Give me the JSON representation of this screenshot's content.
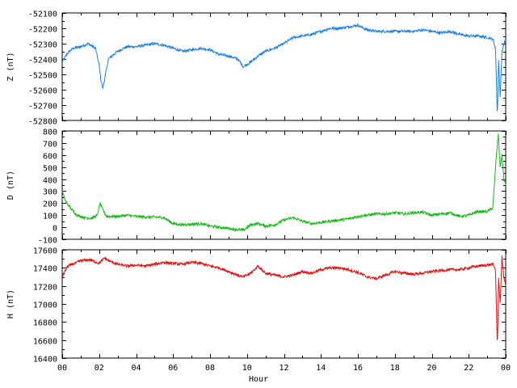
{
  "chart_data": {
    "type": "line",
    "xlabel": "Hour",
    "x_ticks": [
      "00",
      "02",
      "04",
      "06",
      "08",
      "10",
      "12",
      "14",
      "16",
      "18",
      "20",
      "22",
      "00"
    ],
    "xlim": [
      0,
      24
    ],
    "grid": false,
    "panels": [
      {
        "ylabel": "Z (nT)",
        "ylim": [
          -52800,
          -52100
        ],
        "y_ticks": [
          -52100,
          -52200,
          -52300,
          -52400,
          -52500,
          -52600,
          -52700,
          -52800
        ],
        "color": "#1e7fe0",
        "series": [
          {
            "x": [
              0,
              0.3,
              0.6,
              1.0,
              1.4,
              1.8,
              2.0,
              2.1,
              2.2,
              2.5,
              3.0,
              3.5,
              4.0,
              5.0,
              5.5,
              6.0,
              6.5,
              7.0,
              7.5,
              8.0,
              8.5,
              9.0,
              9.5,
              9.8,
              10.2,
              10.6,
              11.0,
              11.5,
              12.0,
              12.5,
              13.0,
              13.5,
              14.0,
              14.5,
              15.0,
              15.5,
              16.0,
              16.5,
              17.0,
              17.5,
              18.0,
              18.5,
              19.0,
              19.5,
              20.0,
              20.5,
              21.0,
              21.5,
              22.0,
              22.5,
              23.0,
              23.3,
              23.45,
              23.55,
              23.62,
              23.7,
              23.8,
              23.9,
              24.0
            ],
            "y": [
              -52420,
              -52360,
              -52330,
              -52320,
              -52300,
              -52330,
              -52440,
              -52540,
              -52590,
              -52400,
              -52350,
              -52320,
              -52320,
              -52300,
              -52310,
              -52330,
              -52350,
              -52340,
              -52330,
              -52340,
              -52370,
              -52380,
              -52400,
              -52450,
              -52420,
              -52380,
              -52350,
              -52330,
              -52300,
              -52260,
              -52250,
              -52240,
              -52220,
              -52200,
              -52200,
              -52190,
              -52180,
              -52210,
              -52220,
              -52220,
              -52220,
              -52220,
              -52220,
              -52210,
              -52220,
              -52230,
              -52220,
              -52240,
              -52250,
              -52250,
              -52260,
              -52270,
              -52330,
              -52780,
              -52400,
              -52650,
              -52350,
              -52300,
              -52280
            ]
          }
        ]
      },
      {
        "ylabel": "D (nT)",
        "ylim": [
          -100,
          800
        ],
        "y_ticks": [
          800,
          700,
          600,
          500,
          400,
          300,
          200,
          100,
          0,
          -100
        ],
        "color": "#18b818",
        "series": [
          {
            "x": [
              0,
              0.2,
              0.5,
              0.8,
              1.2,
              1.6,
              1.9,
              2.05,
              2.15,
              2.4,
              3.0,
              3.5,
              4.0,
              4.5,
              5.0,
              5.5,
              6.0,
              6.5,
              7.0,
              7.5,
              8.0,
              8.5,
              9.0,
              9.5,
              9.8,
              10.2,
              10.6,
              11.0,
              11.5,
              12.0,
              12.5,
              13.0,
              13.5,
              14.0,
              14.5,
              15.0,
              15.5,
              16.0,
              16.5,
              17.0,
              17.5,
              18.0,
              18.5,
              19.0,
              19.5,
              20.0,
              20.5,
              21.0,
              21.5,
              22.0,
              22.5,
              23.0,
              23.3,
              23.5,
              23.6,
              23.7,
              23.8,
              23.9,
              24.0
            ],
            "y": [
              300,
              210,
              150,
              100,
              80,
              75,
              100,
              200,
              160,
              90,
              90,
              100,
              90,
              85,
              85,
              80,
              30,
              20,
              25,
              30,
              10,
              0,
              -10,
              -20,
              -25,
              20,
              30,
              10,
              20,
              60,
              80,
              50,
              30,
              40,
              50,
              60,
              70,
              90,
              100,
              110,
              110,
              120,
              110,
              120,
              125,
              100,
              110,
              120,
              90,
              100,
              130,
              130,
              160,
              600,
              770,
              500,
              600,
              400,
              350
            ]
          }
        ]
      },
      {
        "ylabel": "H (nT)",
        "ylim": [
          16400,
          17600
        ],
        "y_ticks": [
          17600,
          17400,
          17200,
          17000,
          16800,
          16600,
          16400
        ],
        "color": "#e01010",
        "series": [
          {
            "x": [
              0,
              0.3,
              0.7,
              1.0,
              1.5,
              2.0,
              2.3,
              2.5,
              3.0,
              3.5,
              4.0,
              4.5,
              5.0,
              5.5,
              6.0,
              6.5,
              7.0,
              7.5,
              8.0,
              8.5,
              9.0,
              9.5,
              9.8,
              10.2,
              10.6,
              11.0,
              11.5,
              12.0,
              12.5,
              13.0,
              13.5,
              14.0,
              14.5,
              15.0,
              15.5,
              16.0,
              16.5,
              17.0,
              17.5,
              18.0,
              18.5,
              19.0,
              19.5,
              20.0,
              20.5,
              21.0,
              21.5,
              22.0,
              22.5,
              23.0,
              23.3,
              23.45,
              23.55,
              23.62,
              23.7,
              23.8,
              23.9,
              24.0
            ],
            "y": [
              17300,
              17420,
              17450,
              17480,
              17490,
              17450,
              17510,
              17480,
              17440,
              17420,
              17430,
              17420,
              17440,
              17460,
              17450,
              17440,
              17460,
              17450,
              17420,
              17400,
              17360,
              17320,
              17300,
              17340,
              17420,
              17340,
              17320,
              17300,
              17320,
              17360,
              17340,
              17380,
              17400,
              17400,
              17380,
              17350,
              17300,
              17280,
              17320,
              17360,
              17340,
              17330,
              17340,
              17360,
              17370,
              17380,
              17380,
              17400,
              17420,
              17430,
              17440,
              17380,
              16500,
              17300,
              17000,
              17520,
              17300,
              17200
            ]
          }
        ]
      }
    ]
  }
}
